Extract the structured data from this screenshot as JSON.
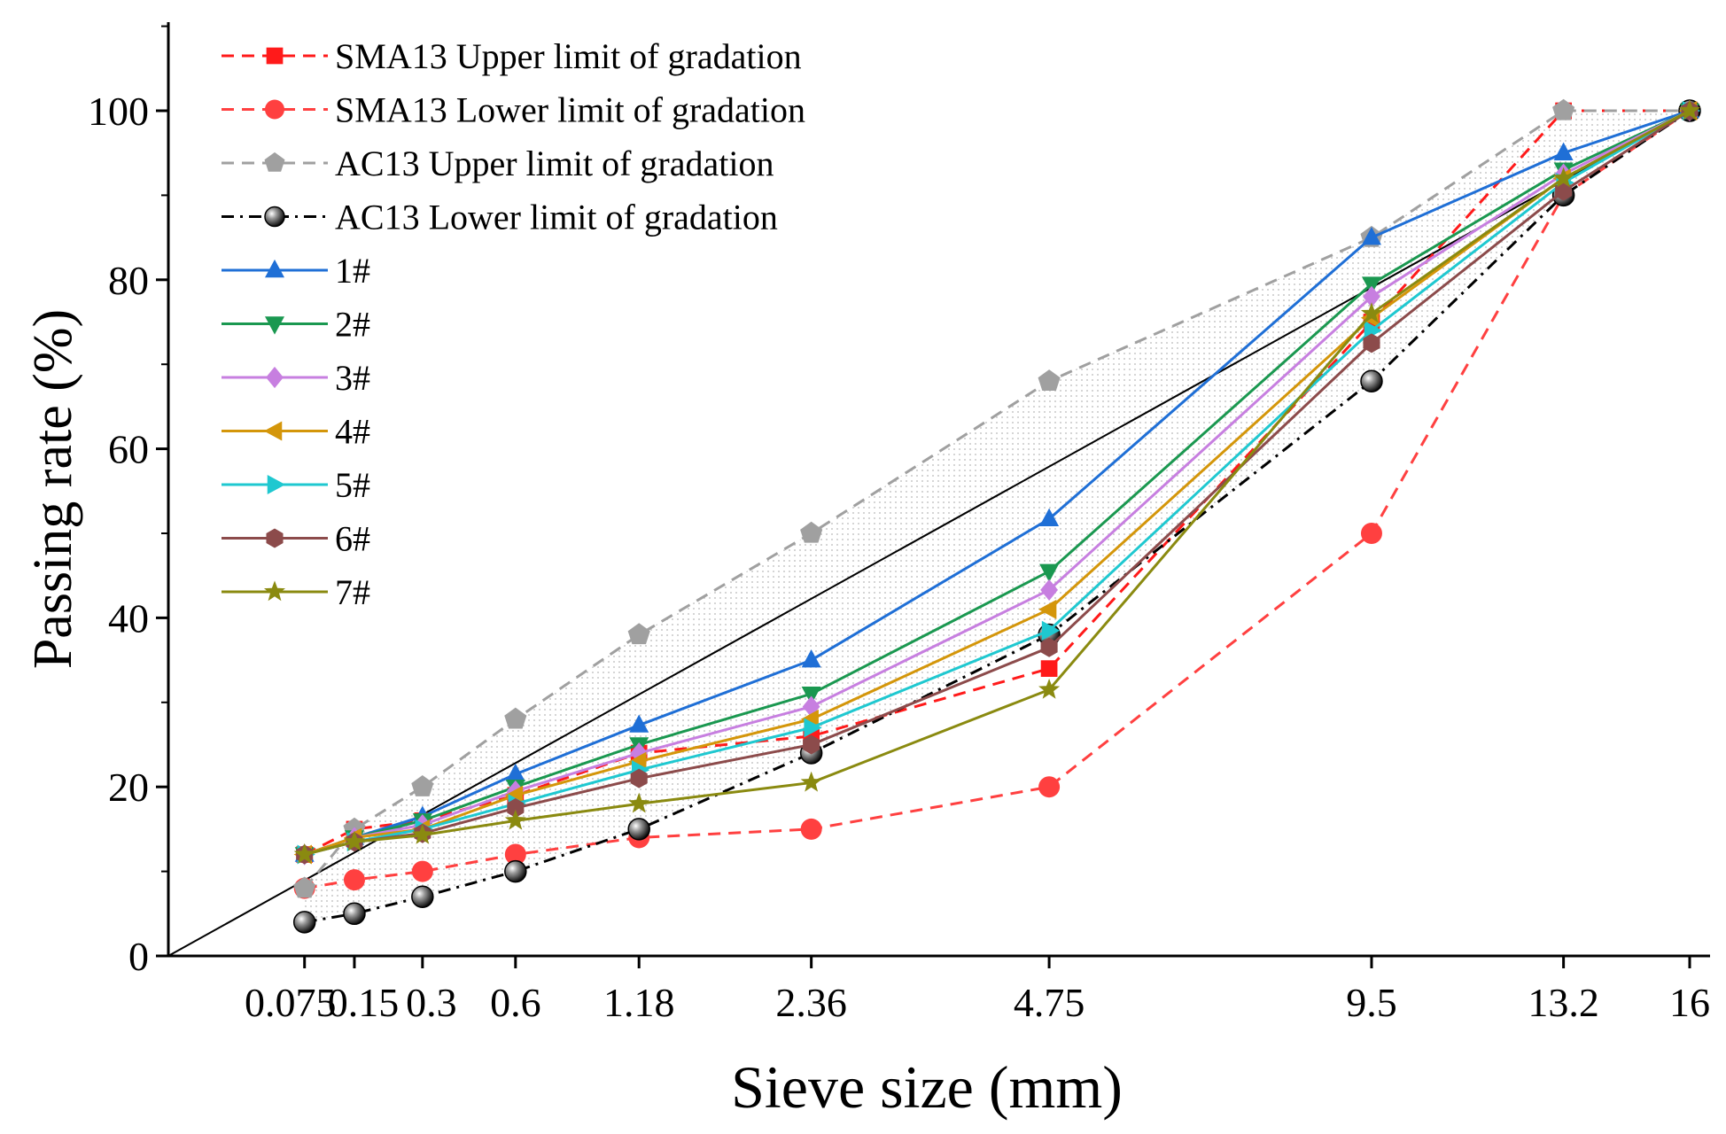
{
  "chart_data": {
    "type": "line",
    "xlabel": "Sieve size (mm)",
    "ylabel": "Passing rate (%)",
    "x_scale": "power 0.45",
    "x_ticks": [
      "0.075",
      "0.15",
      "0.3",
      "0.6",
      "1.18",
      "2.36",
      "4.75",
      "9.5",
      "13.2",
      "16"
    ],
    "x_values": [
      0.075,
      0.15,
      0.3,
      0.6,
      1.18,
      2.36,
      4.75,
      9.5,
      13.2,
      16
    ],
    "xlim": [
      0,
      16
    ],
    "ylim": [
      0,
      110
    ],
    "y_ticks": [
      0,
      20,
      40,
      60,
      80,
      100
    ],
    "grid": false,
    "legend_position": "top-left",
    "band_fill": "AC13 gradation envelope shaded with light gray dots",
    "max_density_line": {
      "from": [
        0,
        0
      ],
      "to": [
        16,
        100
      ],
      "color": "#000000"
    },
    "series": [
      {
        "name": "SMA13 Upper limit of gradation",
        "color": "#ff1a1a",
        "dash": "dashed",
        "marker": "square",
        "values": [
          12,
          15,
          16,
          19,
          24,
          26,
          34,
          75,
          100,
          100
        ]
      },
      {
        "name": "SMA13 Lower limit of gradation",
        "color": "#ff4040",
        "dash": "dashed",
        "marker": "circle",
        "values": [
          8,
          9,
          10,
          12,
          14,
          15,
          20,
          50,
          90,
          100
        ]
      },
      {
        "name": "AC13 Upper limit of gradation",
        "color": "#a0a0a0",
        "dash": "dashed",
        "marker": "pentagon",
        "values": [
          8,
          15,
          20,
          28,
          38,
          50,
          68,
          85,
          100,
          100
        ]
      },
      {
        "name": "AC13 Lower limit of gradation",
        "color": "#000000",
        "dash": "dashdot",
        "marker": "ball",
        "values": [
          4,
          5,
          7,
          10,
          15,
          24,
          38,
          68,
          90,
          100
        ]
      },
      {
        "name": "1#",
        "color": "#1f6fd6",
        "dash": "solid",
        "marker": "triangle-up",
        "values": [
          12,
          14,
          16.5,
          21.5,
          27.3,
          35,
          51.7,
          85,
          95,
          100
        ]
      },
      {
        "name": "2#",
        "color": "#1a9850",
        "dash": "solid",
        "marker": "triangle-down",
        "values": [
          12,
          14,
          16,
          20,
          25,
          31,
          45.5,
          79.5,
          93,
          100
        ]
      },
      {
        "name": "3#",
        "color": "#c77fe0",
        "dash": "solid",
        "marker": "diamond",
        "values": [
          12,
          14,
          15.5,
          19.5,
          24,
          29.5,
          43.3,
          78,
          92.5,
          100
        ]
      },
      {
        "name": "4#",
        "color": "#d4960a",
        "dash": "solid",
        "marker": "triangle-left",
        "values": [
          12,
          14,
          15,
          19,
          23,
          28,
          41,
          75.5,
          92,
          100
        ]
      },
      {
        "name": "5#",
        "color": "#1fc8d0",
        "dash": "solid",
        "marker": "triangle-right",
        "values": [
          12,
          13.5,
          15,
          18,
          22,
          27,
          38.5,
          74,
          91.5,
          100
        ]
      },
      {
        "name": "6#",
        "color": "#8c4b4b",
        "dash": "solid",
        "marker": "hexagon",
        "values": [
          12,
          13.5,
          14.5,
          17.5,
          21,
          25,
          36.5,
          72.5,
          90.5,
          100
        ]
      },
      {
        "name": "7#",
        "color": "#8a8a10",
        "dash": "solid",
        "marker": "star",
        "values": [
          12,
          13.5,
          14.3,
          16,
          18,
          20.5,
          31.5,
          76,
          92,
          100
        ]
      }
    ]
  }
}
